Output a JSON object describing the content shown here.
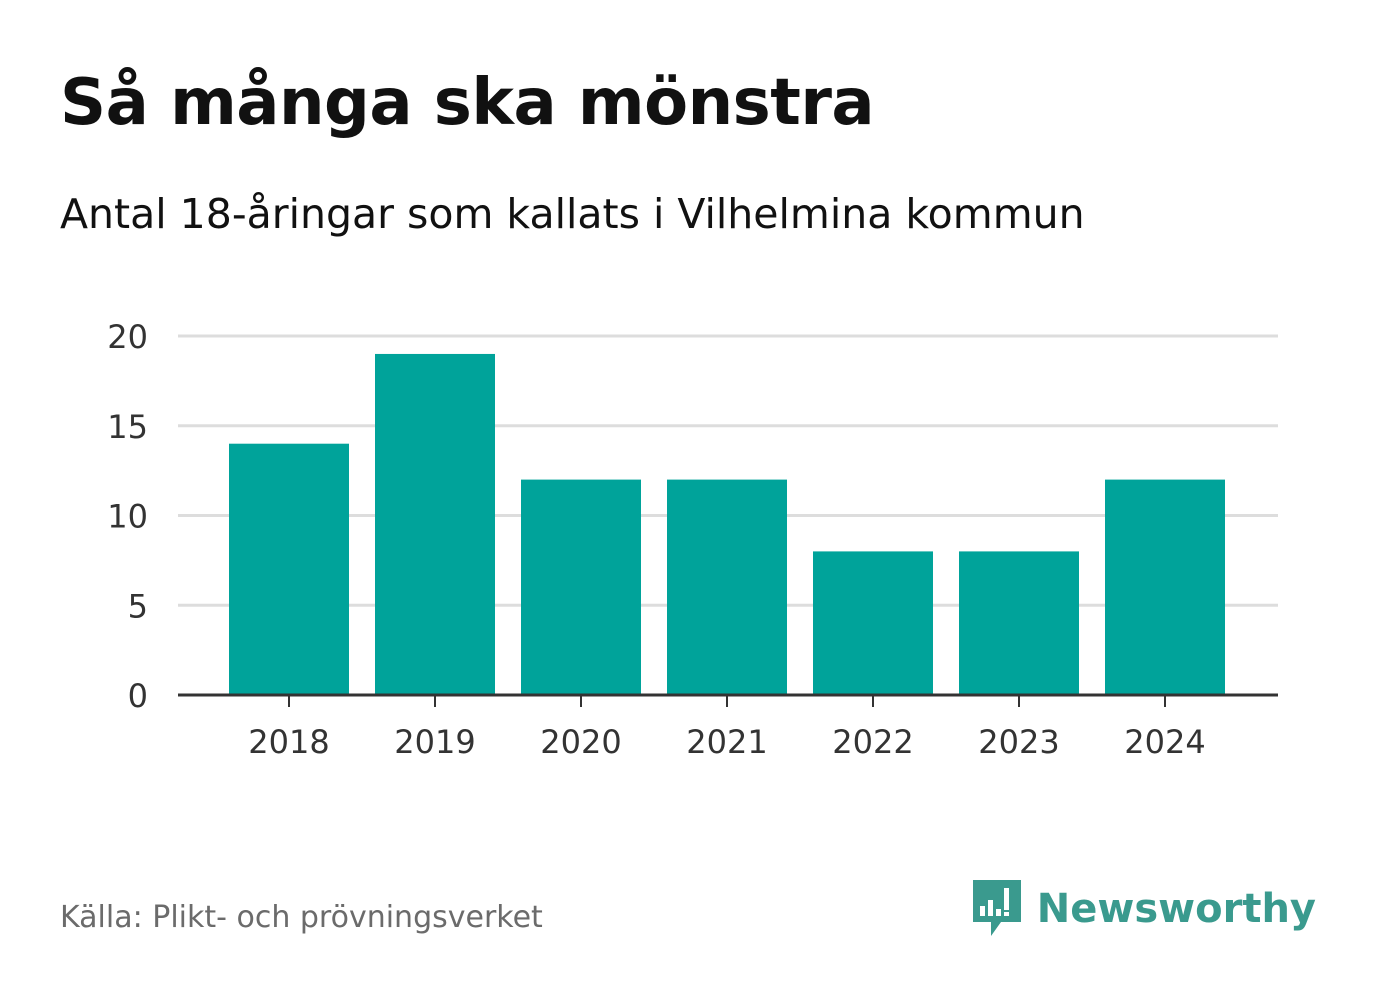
{
  "header": {
    "title": "Så många ska mönstra",
    "subtitle": "Antal 18-åringar som kallats i Vilhelmina kommun"
  },
  "footer": {
    "source": "Källa: Plikt- och prövningsverket",
    "brand_name": "Newsworthy",
    "brand_color": "#3a9a8e",
    "brand_icon": "newsworthy-logo-icon"
  },
  "colors": {
    "bar": "#00a39a",
    "grid": "#dddddd",
    "axis": "#333333"
  },
  "chart_data": {
    "type": "bar",
    "title": "Så många ska mönstra",
    "subtitle": "Antal 18-åringar som kallats i Vilhelmina kommun",
    "xlabel": "",
    "ylabel": "",
    "categories": [
      "2018",
      "2019",
      "2020",
      "2021",
      "2022",
      "2023",
      "2024"
    ],
    "values": [
      14,
      19,
      12,
      12,
      8,
      8,
      12
    ],
    "ylim": [
      0,
      20
    ],
    "yticks": [
      0,
      5,
      10,
      15,
      20
    ],
    "grid": true,
    "legend": "none"
  }
}
